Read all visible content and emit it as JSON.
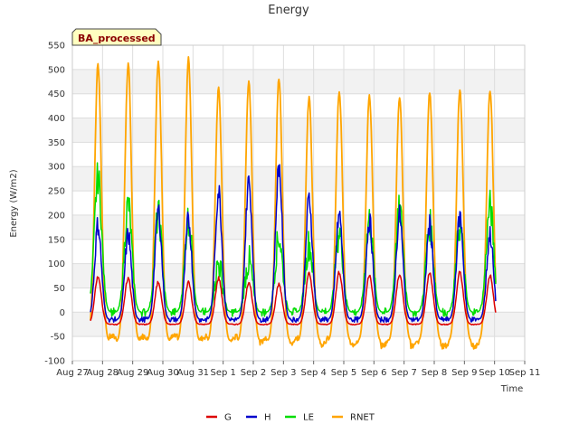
{
  "chart_data": {
    "type": "line",
    "title": "Energy",
    "xlabel": "Time",
    "ylabel": "Energy (W/m2)",
    "badge": "BA_processed",
    "ylim": [
      -100,
      550
    ],
    "yticks": [
      -100,
      -50,
      0,
      50,
      100,
      150,
      200,
      250,
      300,
      350,
      400,
      450,
      500,
      550
    ],
    "xticks": [
      "Aug 27",
      "Aug 28",
      "Aug 29",
      "Aug 30",
      "Aug 31",
      "Sep 1",
      "Sep 2",
      "Sep 3",
      "Sep 4",
      "Sep 5",
      "Sep 6",
      "Sep 7",
      "Sep 8",
      "Sep 9",
      "Sep 10",
      "Sep 11"
    ],
    "x_day_range": [
      0,
      15
    ],
    "x_data_start": 0.6,
    "x_data_end": 14.05,
    "legend_position": "bottom-center",
    "background_bands": true,
    "colors": {
      "G": "#dd0000",
      "H": "#0000cc",
      "LE": "#00dd00",
      "RNET": "#ffa500"
    },
    "series": [
      {
        "name": "G",
        "night": -25,
        "daily_peak": [
          72,
          70,
          62,
          62,
          70,
          62,
          58,
          80,
          82,
          76,
          78,
          80,
          82,
          75
        ]
      },
      {
        "name": "H",
        "night": -15,
        "daily_peak": [
          180,
          160,
          210,
          190,
          250,
          270,
          300,
          235,
          200,
          188,
          200,
          180,
          198,
          160
        ]
      },
      {
        "name": "LE",
        "night": 0,
        "daily_peak": [
          278,
          222,
          200,
          193,
          100,
          105,
          155,
          140,
          165,
          190,
          210,
          180,
          178,
          218
        ]
      },
      {
        "name": "RNET",
        "night": -60,
        "daily_peak": [
          510,
          510,
          518,
          520,
          460,
          476,
          480,
          445,
          455,
          448,
          446,
          452,
          458,
          458
        ]
      }
    ],
    "legend": [
      "G",
      "H",
      "LE",
      "RNET"
    ]
  }
}
